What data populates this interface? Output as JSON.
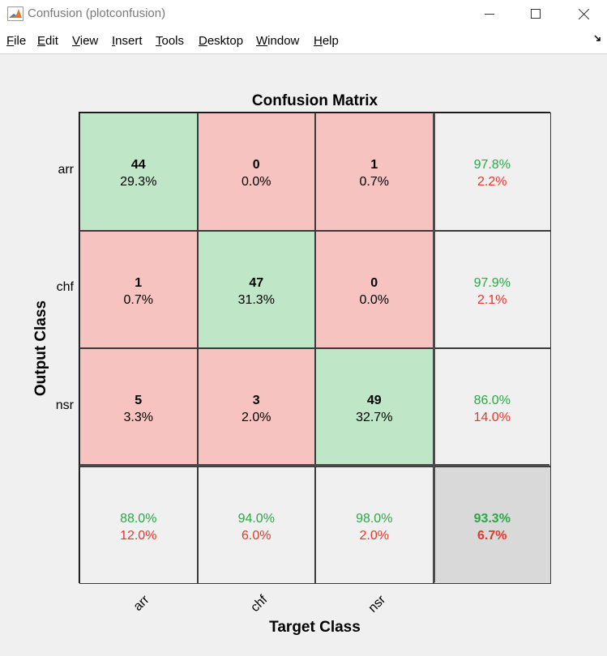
{
  "window": {
    "title": "Confusion (plotconfusion)"
  },
  "menu": {
    "file": {
      "key": "F",
      "rest": "ile"
    },
    "edit": {
      "key": "E",
      "rest": "dit"
    },
    "view": {
      "key": "V",
      "rest": "iew"
    },
    "insert": {
      "key": "I",
      "rest": "nsert"
    },
    "tools": {
      "key": "T",
      "rest": "ools"
    },
    "desktop": {
      "key": "D",
      "rest": "esktop"
    },
    "window": {
      "key": "W",
      "rest": "indow"
    },
    "help": {
      "key": "H",
      "rest": "elp"
    }
  },
  "colors": {
    "correct_cell": "#bfe6c6",
    "incorrect_cell": "#f6c3c0",
    "summary_cell": "#f0f0f0",
    "overall_cell": "#d9d9d9",
    "good_pct": "#2aa845",
    "bad_pct": "#e03a2e"
  },
  "chart_data": {
    "type": "heatmap",
    "title": "Confusion Matrix",
    "xlabel": "Target Class",
    "ylabel": "Output Class",
    "x_categories": [
      "arr",
      "chf",
      "nsr"
    ],
    "y_categories": [
      "arr",
      "chf",
      "nsr"
    ],
    "cells": [
      [
        {
          "count": "44",
          "pct": "29.3%"
        },
        {
          "count": "0",
          "pct": "0.0%"
        },
        {
          "count": "1",
          "pct": "0.7%"
        }
      ],
      [
        {
          "count": "1",
          "pct": "0.7%"
        },
        {
          "count": "47",
          "pct": "31.3%"
        },
        {
          "count": "0",
          "pct": "0.0%"
        }
      ],
      [
        {
          "count": "5",
          "pct": "3.3%"
        },
        {
          "count": "3",
          "pct": "2.0%"
        },
        {
          "count": "49",
          "pct": "32.7%"
        }
      ]
    ],
    "row_summary": [
      {
        "good": "97.8%",
        "bad": "2.2%"
      },
      {
        "good": "97.9%",
        "bad": "2.1%"
      },
      {
        "good": "86.0%",
        "bad": "14.0%"
      }
    ],
    "col_summary": [
      {
        "good": "88.0%",
        "bad": "12.0%"
      },
      {
        "good": "94.0%",
        "bad": "6.0%"
      },
      {
        "good": "98.0%",
        "bad": "2.0%"
      }
    ],
    "overall": {
      "good": "93.3%",
      "bad": "6.7%"
    }
  }
}
